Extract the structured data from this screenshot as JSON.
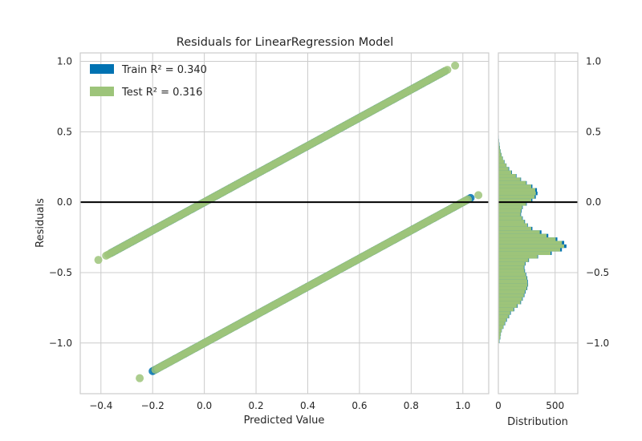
{
  "chart_data": {
    "type": "scatter",
    "title": "Residuals for LinearRegression Model",
    "xlabel": "Predicted Value",
    "ylabel": "Residuals",
    "xlim": [
      -0.48,
      1.1
    ],
    "ylim": [
      -1.36,
      1.06
    ],
    "xticks": [
      "−0.4",
      "−0.2",
      "0.0",
      "0.2",
      "0.4",
      "0.6",
      "0.8",
      "1.0"
    ],
    "xtick_values": [
      -0.4,
      -0.2,
      0.0,
      0.2,
      0.4,
      0.6,
      0.8,
      1.0
    ],
    "yticks": [
      "1.0",
      "0.5",
      "0.0",
      "−0.5",
      "−1.0"
    ],
    "ytick_values": [
      1.0,
      0.5,
      0.0,
      -0.5,
      -1.0
    ],
    "grid": true,
    "zero_line": 0.0,
    "legend": {
      "placement": "top-left",
      "entries": [
        {
          "name": "Train",
          "stat": "R² = 0.340",
          "color": "#0072b2"
        },
        {
          "name": "Test",
          "stat": "R² = 0.316",
          "color": "#9dc47a"
        }
      ]
    },
    "series": [
      {
        "name": "Train",
        "color": "#0072b2",
        "bands": [
          {
            "x_start": -0.36,
            "x_end": 0.93,
            "slope": 1.0,
            "intercept": 0.0
          },
          {
            "x_start": -0.2,
            "x_end": 1.03,
            "slope": 1.0,
            "intercept": -1.0
          }
        ]
      },
      {
        "name": "Test",
        "color": "#9dc47a",
        "bands": [
          {
            "x_start": -0.38,
            "x_end": 0.94,
            "slope": 1.0,
            "intercept": 0.0
          },
          {
            "x_start": -0.18,
            "x_end": 1.02,
            "slope": 1.0,
            "intercept": -1.0
          }
        ],
        "points": [
          {
            "x": -0.41,
            "y": -0.41
          },
          {
            "x": 0.97,
            "y": 0.97
          },
          {
            "x": -0.25,
            "y": -1.25
          },
          {
            "x": -0.19,
            "y": -1.19
          },
          {
            "x": 1.06,
            "y": 0.05
          }
        ]
      }
    ],
    "distribution": {
      "xlabel": "Distribution",
      "xlim": [
        0,
        700
      ],
      "xticks": [
        "0",
        "500"
      ],
      "xtick_values": [
        0,
        500
      ],
      "yticks": [
        "1.0",
        "0.5",
        "0.0",
        "−0.5",
        "−1.0"
      ],
      "bin_width": 0.025,
      "bins_bottom": -1.0,
      "train_counts": [
        10,
        18,
        22,
        30,
        45,
        60,
        75,
        95,
        110,
        140,
        170,
        200,
        215,
        230,
        240,
        255,
        262,
        260,
        255,
        245,
        235,
        230,
        240,
        270,
        350,
        470,
        560,
        600,
        580,
        520,
        440,
        380,
        300,
        260,
        235,
        215,
        200,
        205,
        215,
        250,
        300,
        330,
        345,
        340,
        300,
        250,
        200,
        160,
        120,
        95,
        72,
        55,
        40,
        28,
        20,
        14,
        10,
        6,
        4,
        2
      ],
      "test_counts": [
        8,
        16,
        20,
        28,
        42,
        56,
        70,
        90,
        105,
        135,
        165,
        195,
        210,
        225,
        235,
        250,
        258,
        255,
        250,
        240,
        230,
        225,
        235,
        265,
        345,
        460,
        545,
        580,
        560,
        505,
        425,
        365,
        290,
        255,
        230,
        210,
        195,
        200,
        210,
        245,
        290,
        320,
        330,
        325,
        290,
        245,
        195,
        155,
        115,
        90,
        70,
        52,
        38,
        26,
        18,
        12,
        8,
        5,
        3,
        2
      ]
    }
  }
}
